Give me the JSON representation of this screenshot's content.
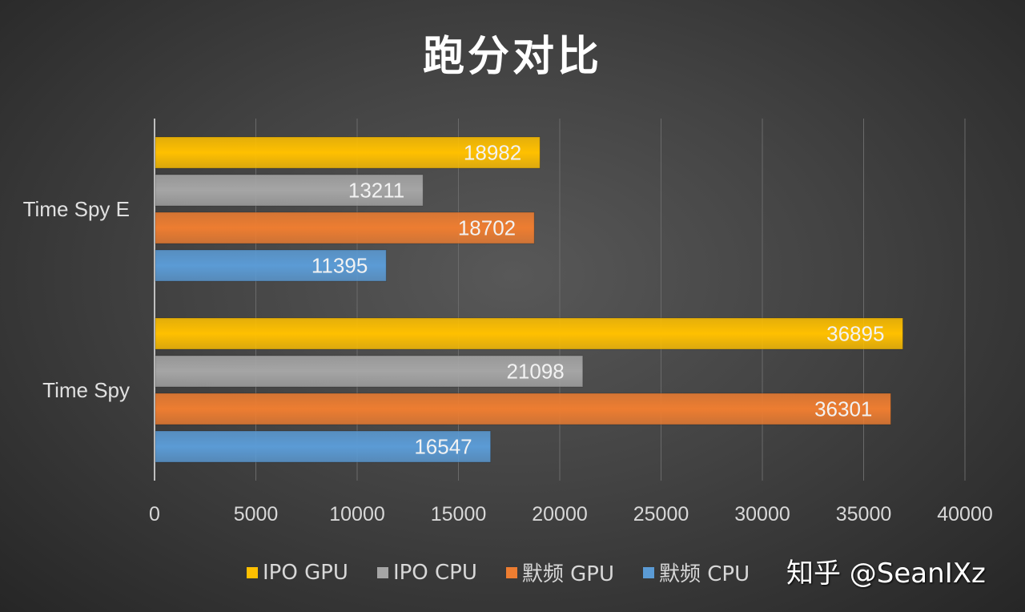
{
  "chart_data": {
    "type": "bar",
    "orientation": "horizontal",
    "title": "跑分对比",
    "categories": [
      "Time Spy E",
      "Time Spy"
    ],
    "series": [
      {
        "name": "IPO GPU",
        "color": "#FFC000",
        "values": [
          18982,
          36895
        ]
      },
      {
        "name": "IPO CPU",
        "color": "#A5A5A5",
        "values": [
          13211,
          21098
        ]
      },
      {
        "name": "默频 GPU",
        "color": "#ED7D31",
        "values": [
          18702,
          36301
        ]
      },
      {
        "name": "默频 CPU",
        "color": "#5B9BD5",
        "values": [
          11395,
          16547
        ]
      }
    ],
    "xlim": [
      0,
      40000
    ],
    "xticks": [
      "0",
      "5000",
      "10000",
      "15000",
      "20000",
      "25000",
      "30000",
      "35000",
      "40000"
    ],
    "grid": true,
    "legend_position": "bottom"
  },
  "watermark": "知乎 @SeanIXz"
}
